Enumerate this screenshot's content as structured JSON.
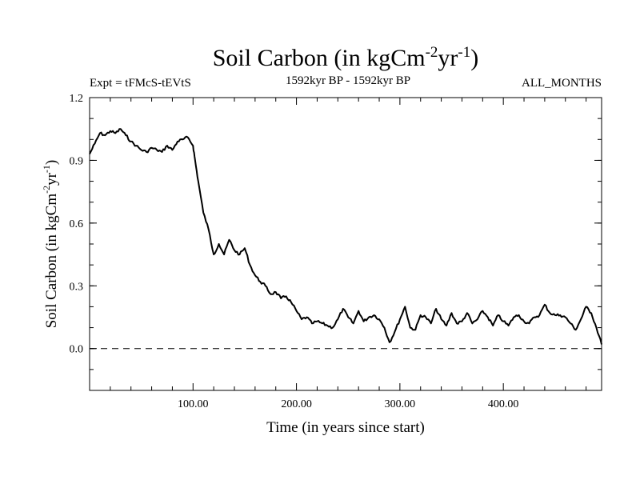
{
  "chart_data": {
    "type": "line",
    "title_main": "Soil Carbon (in kgCm",
    "title_sup1": "-2",
    "title_mid": "yr",
    "title_sup2": "-1",
    "title_end": ")",
    "subtitle_left": "Expt = tFMcS-tEVtS",
    "subtitle_center": "1592kyr BP - 1592kyr BP",
    "subtitle_right": "ALL_MONTHS",
    "xlabel": "Time (in years since start)",
    "ylabel_main": "Soil Carbon (in kgCm",
    "ylabel_sup1": "-2",
    "ylabel_mid": "yr",
    "ylabel_sup2": "-1",
    "ylabel_end": ")",
    "xlim": [
      0,
      495
    ],
    "ylim": [
      -0.2,
      1.2
    ],
    "x_ticks": [
      {
        "value": 100,
        "label": "100.00"
      },
      {
        "value": 200,
        "label": "200.00"
      },
      {
        "value": 300,
        "label": "300.00"
      },
      {
        "value": 400,
        "label": "400.00"
      }
    ],
    "y_ticks": [
      {
        "value": 0.0,
        "label": "0.0"
      },
      {
        "value": 0.3,
        "label": "0.3"
      },
      {
        "value": 0.6,
        "label": "0.6"
      },
      {
        "value": 0.9,
        "label": "0.9"
      },
      {
        "value": 1.2,
        "label": "1.2"
      }
    ],
    "reference_line": {
      "y": 0.0,
      "style": "dashed"
    },
    "series": [
      {
        "name": "Soil Carbon",
        "x": [
          0,
          5,
          10,
          15,
          20,
          25,
          30,
          35,
          40,
          45,
          50,
          55,
          60,
          65,
          70,
          75,
          80,
          85,
          90,
          95,
          100,
          102,
          105,
          110,
          115,
          120,
          125,
          130,
          135,
          140,
          145,
          150,
          155,
          160,
          165,
          170,
          175,
          180,
          185,
          190,
          195,
          200,
          205,
          210,
          215,
          220,
          225,
          230,
          235,
          240,
          245,
          250,
          255,
          260,
          265,
          270,
          275,
          280,
          285,
          290,
          295,
          300,
          305,
          310,
          315,
          320,
          325,
          330,
          335,
          340,
          345,
          350,
          355,
          360,
          365,
          370,
          375,
          380,
          385,
          390,
          395,
          400,
          405,
          410,
          415,
          420,
          425,
          430,
          435,
          440,
          445,
          450,
          455,
          460,
          465,
          470,
          475,
          480,
          485,
          490,
          495
        ],
        "values": [
          0.93,
          0.98,
          1.03,
          1.02,
          1.04,
          1.03,
          1.05,
          1.02,
          0.99,
          0.97,
          0.95,
          0.94,
          0.96,
          0.95,
          0.94,
          0.97,
          0.95,
          0.99,
          1.0,
          1.01,
          0.97,
          0.9,
          0.8,
          0.65,
          0.57,
          0.45,
          0.5,
          0.45,
          0.52,
          0.47,
          0.45,
          0.48,
          0.4,
          0.35,
          0.32,
          0.3,
          0.26,
          0.27,
          0.24,
          0.25,
          0.22,
          0.18,
          0.14,
          0.15,
          0.12,
          0.13,
          0.12,
          0.11,
          0.1,
          0.14,
          0.19,
          0.15,
          0.12,
          0.18,
          0.13,
          0.15,
          0.16,
          0.14,
          0.1,
          0.03,
          0.08,
          0.14,
          0.2,
          0.1,
          0.09,
          0.16,
          0.15,
          0.12,
          0.19,
          0.14,
          0.11,
          0.17,
          0.12,
          0.13,
          0.17,
          0.12,
          0.14,
          0.18,
          0.15,
          0.11,
          0.16,
          0.13,
          0.11,
          0.15,
          0.16,
          0.13,
          0.12,
          0.15,
          0.16,
          0.21,
          0.17,
          0.16,
          0.16,
          0.15,
          0.12,
          0.09,
          0.14,
          0.2,
          0.17,
          0.1,
          0.02
        ]
      }
    ]
  }
}
